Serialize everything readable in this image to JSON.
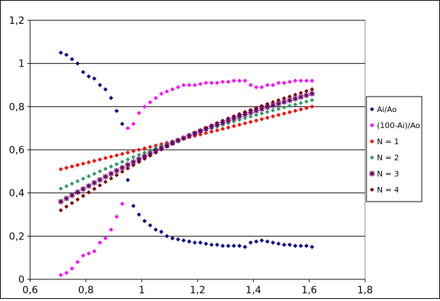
{
  "chart_data": {
    "type": "scatter",
    "title": "",
    "xlabel": "",
    "ylabel": "",
    "xlim": [
      0.6,
      1.8
    ],
    "ylim": [
      0,
      1.2
    ],
    "x_ticks": [
      "0,6",
      "0,8",
      "1",
      "1,2",
      "1,4",
      "1,6",
      "1,8"
    ],
    "y_ticks": [
      "0",
      "0,2",
      "0,4",
      "0,6",
      "0,8",
      "1",
      "1,2"
    ],
    "grid": "horizontal",
    "legend_position": "right",
    "series": [
      {
        "name": "Ai/Ao",
        "marker": "diamond",
        "color": "#000080",
        "x": [
          0.71,
          0.73,
          0.75,
          0.77,
          0.79,
          0.81,
          0.83,
          0.85,
          0.87,
          0.89,
          0.91,
          0.93,
          0.95,
          0.97,
          0.99,
          1.01,
          1.03,
          1.05,
          1.07,
          1.09,
          1.11,
          1.13,
          1.15,
          1.17,
          1.19,
          1.21,
          1.23,
          1.25,
          1.27,
          1.29,
          1.31,
          1.33,
          1.35,
          1.37,
          1.39,
          1.41,
          1.43,
          1.45,
          1.47,
          1.49,
          1.51,
          1.53,
          1.55,
          1.57,
          1.59,
          1.61
        ],
        "y": [
          1.05,
          1.04,
          1.02,
          1.0,
          0.96,
          0.94,
          0.93,
          0.9,
          0.88,
          0.84,
          0.78,
          0.72,
          0.46,
          0.34,
          0.3,
          0.27,
          0.25,
          0.23,
          0.22,
          0.2,
          0.19,
          0.185,
          0.18,
          0.175,
          0.17,
          0.17,
          0.165,
          0.16,
          0.16,
          0.155,
          0.155,
          0.155,
          0.155,
          0.15,
          0.17,
          0.175,
          0.18,
          0.175,
          0.17,
          0.165,
          0.16,
          0.16,
          0.155,
          0.155,
          0.155,
          0.15
        ]
      },
      {
        "name": "(100-Ai)/Ao",
        "marker": "diamond",
        "color": "#ff00ff",
        "x": [
          0.71,
          0.73,
          0.75,
          0.77,
          0.79,
          0.81,
          0.83,
          0.85,
          0.87,
          0.89,
          0.91,
          0.93,
          0.95,
          0.97,
          0.99,
          1.01,
          1.03,
          1.05,
          1.07,
          1.09,
          1.11,
          1.13,
          1.15,
          1.17,
          1.19,
          1.21,
          1.23,
          1.25,
          1.27,
          1.29,
          1.31,
          1.33,
          1.35,
          1.37,
          1.39,
          1.41,
          1.43,
          1.45,
          1.47,
          1.49,
          1.51,
          1.53,
          1.55,
          1.57,
          1.59,
          1.61
        ],
        "y": [
          0.02,
          0.03,
          0.05,
          0.08,
          0.11,
          0.12,
          0.13,
          0.17,
          0.19,
          0.23,
          0.29,
          0.35,
          0.7,
          0.72,
          0.77,
          0.8,
          0.82,
          0.84,
          0.86,
          0.87,
          0.88,
          0.89,
          0.9,
          0.9,
          0.9,
          0.905,
          0.91,
          0.91,
          0.91,
          0.915,
          0.915,
          0.92,
          0.92,
          0.92,
          0.9,
          0.89,
          0.89,
          0.9,
          0.9,
          0.91,
          0.91,
          0.915,
          0.92,
          0.92,
          0.92,
          0.92
        ]
      },
      {
        "name": "N = 1",
        "marker": "diamond",
        "color": "#ff0000",
        "x_range": [
          0.71,
          1.61
        ],
        "y_range": [
          0.51,
          0.8
        ],
        "curve": 0.0,
        "points": 46
      },
      {
        "name": "N = 2",
        "marker": "diamond",
        "color": "#339966",
        "x_range": [
          0.71,
          1.61
        ],
        "y_range": [
          0.42,
          0.83
        ],
        "curve": 0.035,
        "points": 46
      },
      {
        "name": "N = 3",
        "marker": "star",
        "color": "#660066",
        "x_range": [
          0.71,
          1.61
        ],
        "y_range": [
          0.36,
          0.86
        ],
        "curve": 0.05,
        "points": 46
      },
      {
        "name": "N = 4",
        "marker": "diamond",
        "color": "#800000",
        "x_range": [
          0.71,
          1.61
        ],
        "y_range": [
          0.32,
          0.88
        ],
        "curve": 0.06,
        "points": 46
      }
    ]
  }
}
